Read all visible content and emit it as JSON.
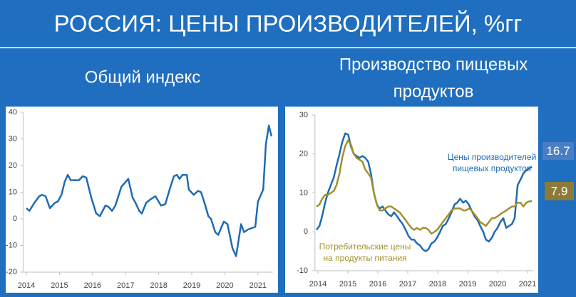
{
  "title": "РОССИЯ: ЦЕНЫ ПРОИЗВОДИТЕЛЕЙ, %гг",
  "chart_data": [
    {
      "type": "line",
      "subtitle": [
        "Общий индекс"
      ],
      "xlim": [
        2013.9,
        2021.45
      ],
      "xticks": [
        2014,
        2015,
        2016,
        2017,
        2018,
        2019,
        2020,
        2021
      ],
      "ylim": [
        -20,
        40
      ],
      "yticks": [
        -20,
        -10,
        0,
        10,
        20,
        30,
        40
      ],
      "grid": false,
      "x": [
        2014.0,
        2014.09,
        2014.24,
        2014.39,
        2014.47,
        2014.58,
        2014.71,
        2014.86,
        2014.95,
        2015.06,
        2015.16,
        2015.25,
        2015.34,
        2015.49,
        2015.59,
        2015.7,
        2015.81,
        2015.96,
        2016.11,
        2016.22,
        2016.39,
        2016.48,
        2016.59,
        2016.69,
        2016.87,
        2017.08,
        2017.21,
        2017.3,
        2017.41,
        2017.49,
        2017.62,
        2017.77,
        2017.9,
        2018.07,
        2018.2,
        2018.33,
        2018.46,
        2018.55,
        2018.63,
        2018.72,
        2018.85,
        2018.91,
        2019.06,
        2019.19,
        2019.28,
        2019.41,
        2019.5,
        2019.58,
        2019.71,
        2019.8,
        2019.97,
        2020.08,
        2020.23,
        2020.34,
        2020.49,
        2020.58,
        2020.7,
        2020.92,
        2021.0,
        2021.16,
        2021.24,
        2021.33,
        2021.41
      ],
      "series": [
        {
          "color": "#1f6bb3",
          "values": [
            4,
            3,
            6,
            8.5,
            9,
            8.5,
            4,
            6,
            6.5,
            9,
            14,
            16.5,
            14.5,
            14.5,
            14.5,
            16,
            15.5,
            8,
            2,
            1,
            5,
            4.5,
            3,
            5,
            12,
            15,
            8,
            6,
            3,
            2,
            6,
            7.5,
            8.5,
            5,
            5.5,
            11,
            16,
            16.5,
            15,
            16.5,
            16.5,
            11,
            9,
            10.5,
            10,
            5,
            1,
            0,
            -5,
            -6,
            -1,
            -2,
            -11,
            -14,
            -2,
            -5,
            -4,
            -3,
            6.5,
            11,
            28,
            35,
            31
          ]
        }
      ]
    },
    {
      "type": "line",
      "subtitle": [
        "Производство пищевых",
        "продуктов"
      ],
      "xlim": [
        2013.9,
        2021.2
      ],
      "xticks": [
        2014,
        2015,
        2016,
        2017,
        2018,
        2019,
        2020,
        2021
      ],
      "ylim": [
        -10,
        30
      ],
      "yticks": [
        -10,
        0,
        10,
        20,
        30
      ],
      "grid": false,
      "x": [
        2013.95,
        2014.05,
        2014.14,
        2014.24,
        2014.33,
        2014.43,
        2014.53,
        2014.62,
        2014.72,
        2014.81,
        2014.91,
        2015.01,
        2015.1,
        2015.2,
        2015.29,
        2015.39,
        2015.49,
        2015.58,
        2015.68,
        2015.77,
        2015.87,
        2015.97,
        2016.06,
        2016.16,
        2016.25,
        2016.35,
        2016.45,
        2016.54,
        2016.64,
        2016.73,
        2016.83,
        2016.93,
        2017.02,
        2017.12,
        2017.21,
        2017.31,
        2017.41,
        2017.5,
        2017.6,
        2017.69,
        2017.79,
        2017.89,
        2017.98,
        2018.08,
        2018.17,
        2018.27,
        2018.37,
        2018.46,
        2018.56,
        2018.65,
        2018.75,
        2018.85,
        2018.94,
        2019.04,
        2019.13,
        2019.23,
        2019.33,
        2019.42,
        2019.52,
        2019.61,
        2019.71,
        2019.81,
        2019.9,
        2020.0,
        2020.09,
        2020.19,
        2020.29,
        2020.38,
        2020.48,
        2020.57,
        2020.67,
        2020.77,
        2020.86,
        2020.96,
        2021.05,
        2021.15
      ],
      "series": [
        {
          "color": "#1f6bb3",
          "label": [
            "Цены производителей",
            "пищевых продуктов"
          ],
          "end_label_color": "#4a7ec4",
          "values": [
            0.5,
            1.5,
            4,
            7.5,
            10,
            12,
            14,
            17,
            20,
            23,
            25.3,
            25,
            22,
            20,
            19.5,
            19,
            19.5,
            19,
            18,
            15,
            10,
            7,
            6,
            6.5,
            5.5,
            4.5,
            4,
            5,
            4,
            3,
            2,
            0.5,
            -1,
            -2,
            -2,
            -3,
            -3.5,
            -4.5,
            -5,
            -4.5,
            -3,
            -2.5,
            -1.5,
            0,
            1.5,
            2,
            3.5,
            5,
            7,
            7.5,
            8.5,
            7.5,
            8,
            7,
            5.5,
            4,
            3,
            1.5,
            0,
            -2,
            -2.5,
            -1.5,
            0,
            1,
            2.5,
            3.5,
            1,
            1.5,
            2,
            3.5,
            12,
            13.5,
            15,
            15.8,
            16.3,
            16.7
          ]
        },
        {
          "color": "#a2912c",
          "label": [
            "Потребительские цены",
            "на продукты питания"
          ],
          "end_label_color": "#8c7b38",
          "values": [
            6.5,
            7,
            8.5,
            9.5,
            9.5,
            10,
            10.5,
            12,
            15,
            19,
            22,
            23.5,
            22.5,
            20,
            19,
            18.5,
            18,
            16,
            15,
            14,
            10,
            7,
            5.5,
            5.5,
            6,
            6.5,
            6.5,
            6,
            5.5,
            5,
            4,
            3,
            2,
            1,
            0.5,
            1,
            0.5,
            1,
            1,
            0.5,
            -0.5,
            0,
            0.5,
            1.5,
            2.5,
            3.5,
            4.5,
            5.5,
            6,
            6,
            6,
            5.5,
            5.5,
            6,
            5.5,
            4.5,
            3.5,
            2.5,
            2,
            1.5,
            2.5,
            3.5,
            3.5,
            4,
            4.5,
            5,
            5.5,
            6,
            6.5,
            6.5,
            7.5,
            7.5,
            6.5,
            7.5,
            7.8,
            7.9
          ]
        }
      ]
    }
  ]
}
